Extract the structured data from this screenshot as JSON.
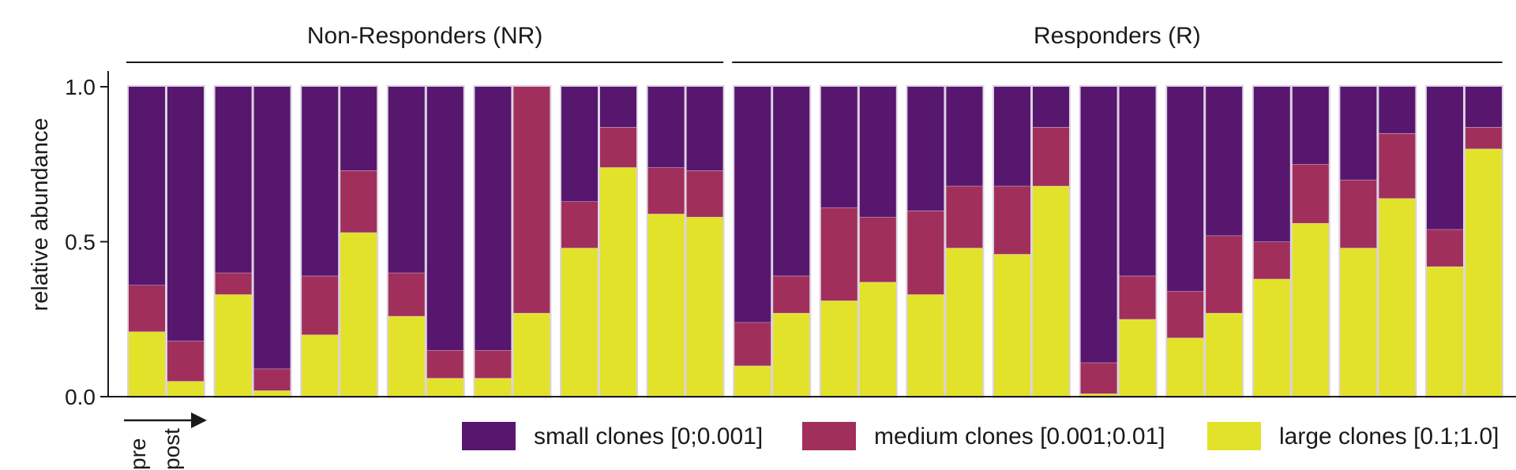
{
  "chart_data": {
    "type": "bar",
    "stacked": true,
    "ylabel": "relative abundance",
    "ylim": [
      0,
      1.0
    ],
    "yticks": [
      0.0,
      0.5,
      1.0
    ],
    "ytick_labels": [
      "0.0",
      "0.5",
      "1.0"
    ],
    "groups": [
      {
        "name": "Non-Responders (NR)",
        "patients": 7
      },
      {
        "name": "Responders (R)",
        "patients": 9
      }
    ],
    "time_axis": {
      "first": "pre",
      "second": "post"
    },
    "legend": {
      "position": "bottom-right",
      "entries": [
        {
          "key": "large",
          "label": "large clones [0.1;1.0]",
          "color": "#e3e22a"
        },
        {
          "key": "medium",
          "label": "medium clones [0.001;0.01]",
          "color": "#a12f5c"
        },
        {
          "key": "small",
          "label": "small clones [0;0.001]",
          "color": "#57176e"
        }
      ]
    },
    "series": [
      {
        "name": "large clones [0.1;1.0]",
        "values": [
          0.21,
          0.05,
          0.33,
          0.02,
          0.2,
          0.53,
          0.26,
          0.06,
          0.06,
          0.27,
          0.48,
          0.74,
          0.59,
          0.58,
          0.1,
          0.27,
          0.31,
          0.37,
          0.33,
          0.48,
          0.46,
          0.68,
          0.01,
          0.25,
          0.19,
          0.27,
          0.38,
          0.56,
          0.48,
          0.64,
          0.42,
          0.8
        ]
      },
      {
        "name": "medium clones [0.001;0.01]",
        "values": [
          0.15,
          0.13,
          0.07,
          0.07,
          0.19,
          0.2,
          0.14,
          0.09,
          0.09,
          0.73,
          0.15,
          0.13,
          0.15,
          0.15,
          0.14,
          0.12,
          0.3,
          0.21,
          0.27,
          0.2,
          0.22,
          0.19,
          0.1,
          0.14,
          0.15,
          0.25,
          0.12,
          0.19,
          0.22,
          0.21,
          0.12,
          0.07
        ]
      },
      {
        "name": "small clones [0;0.001]",
        "values": [
          0.64,
          0.82,
          0.6,
          0.91,
          0.61,
          0.27,
          0.6,
          0.85,
          0.85,
          0.0,
          0.37,
          0.13,
          0.26,
          0.27,
          0.76,
          0.61,
          0.39,
          0.42,
          0.4,
          0.32,
          0.32,
          0.13,
          0.89,
          0.61,
          0.66,
          0.48,
          0.5,
          0.25,
          0.3,
          0.15,
          0.46,
          0.13
        ]
      }
    ]
  }
}
